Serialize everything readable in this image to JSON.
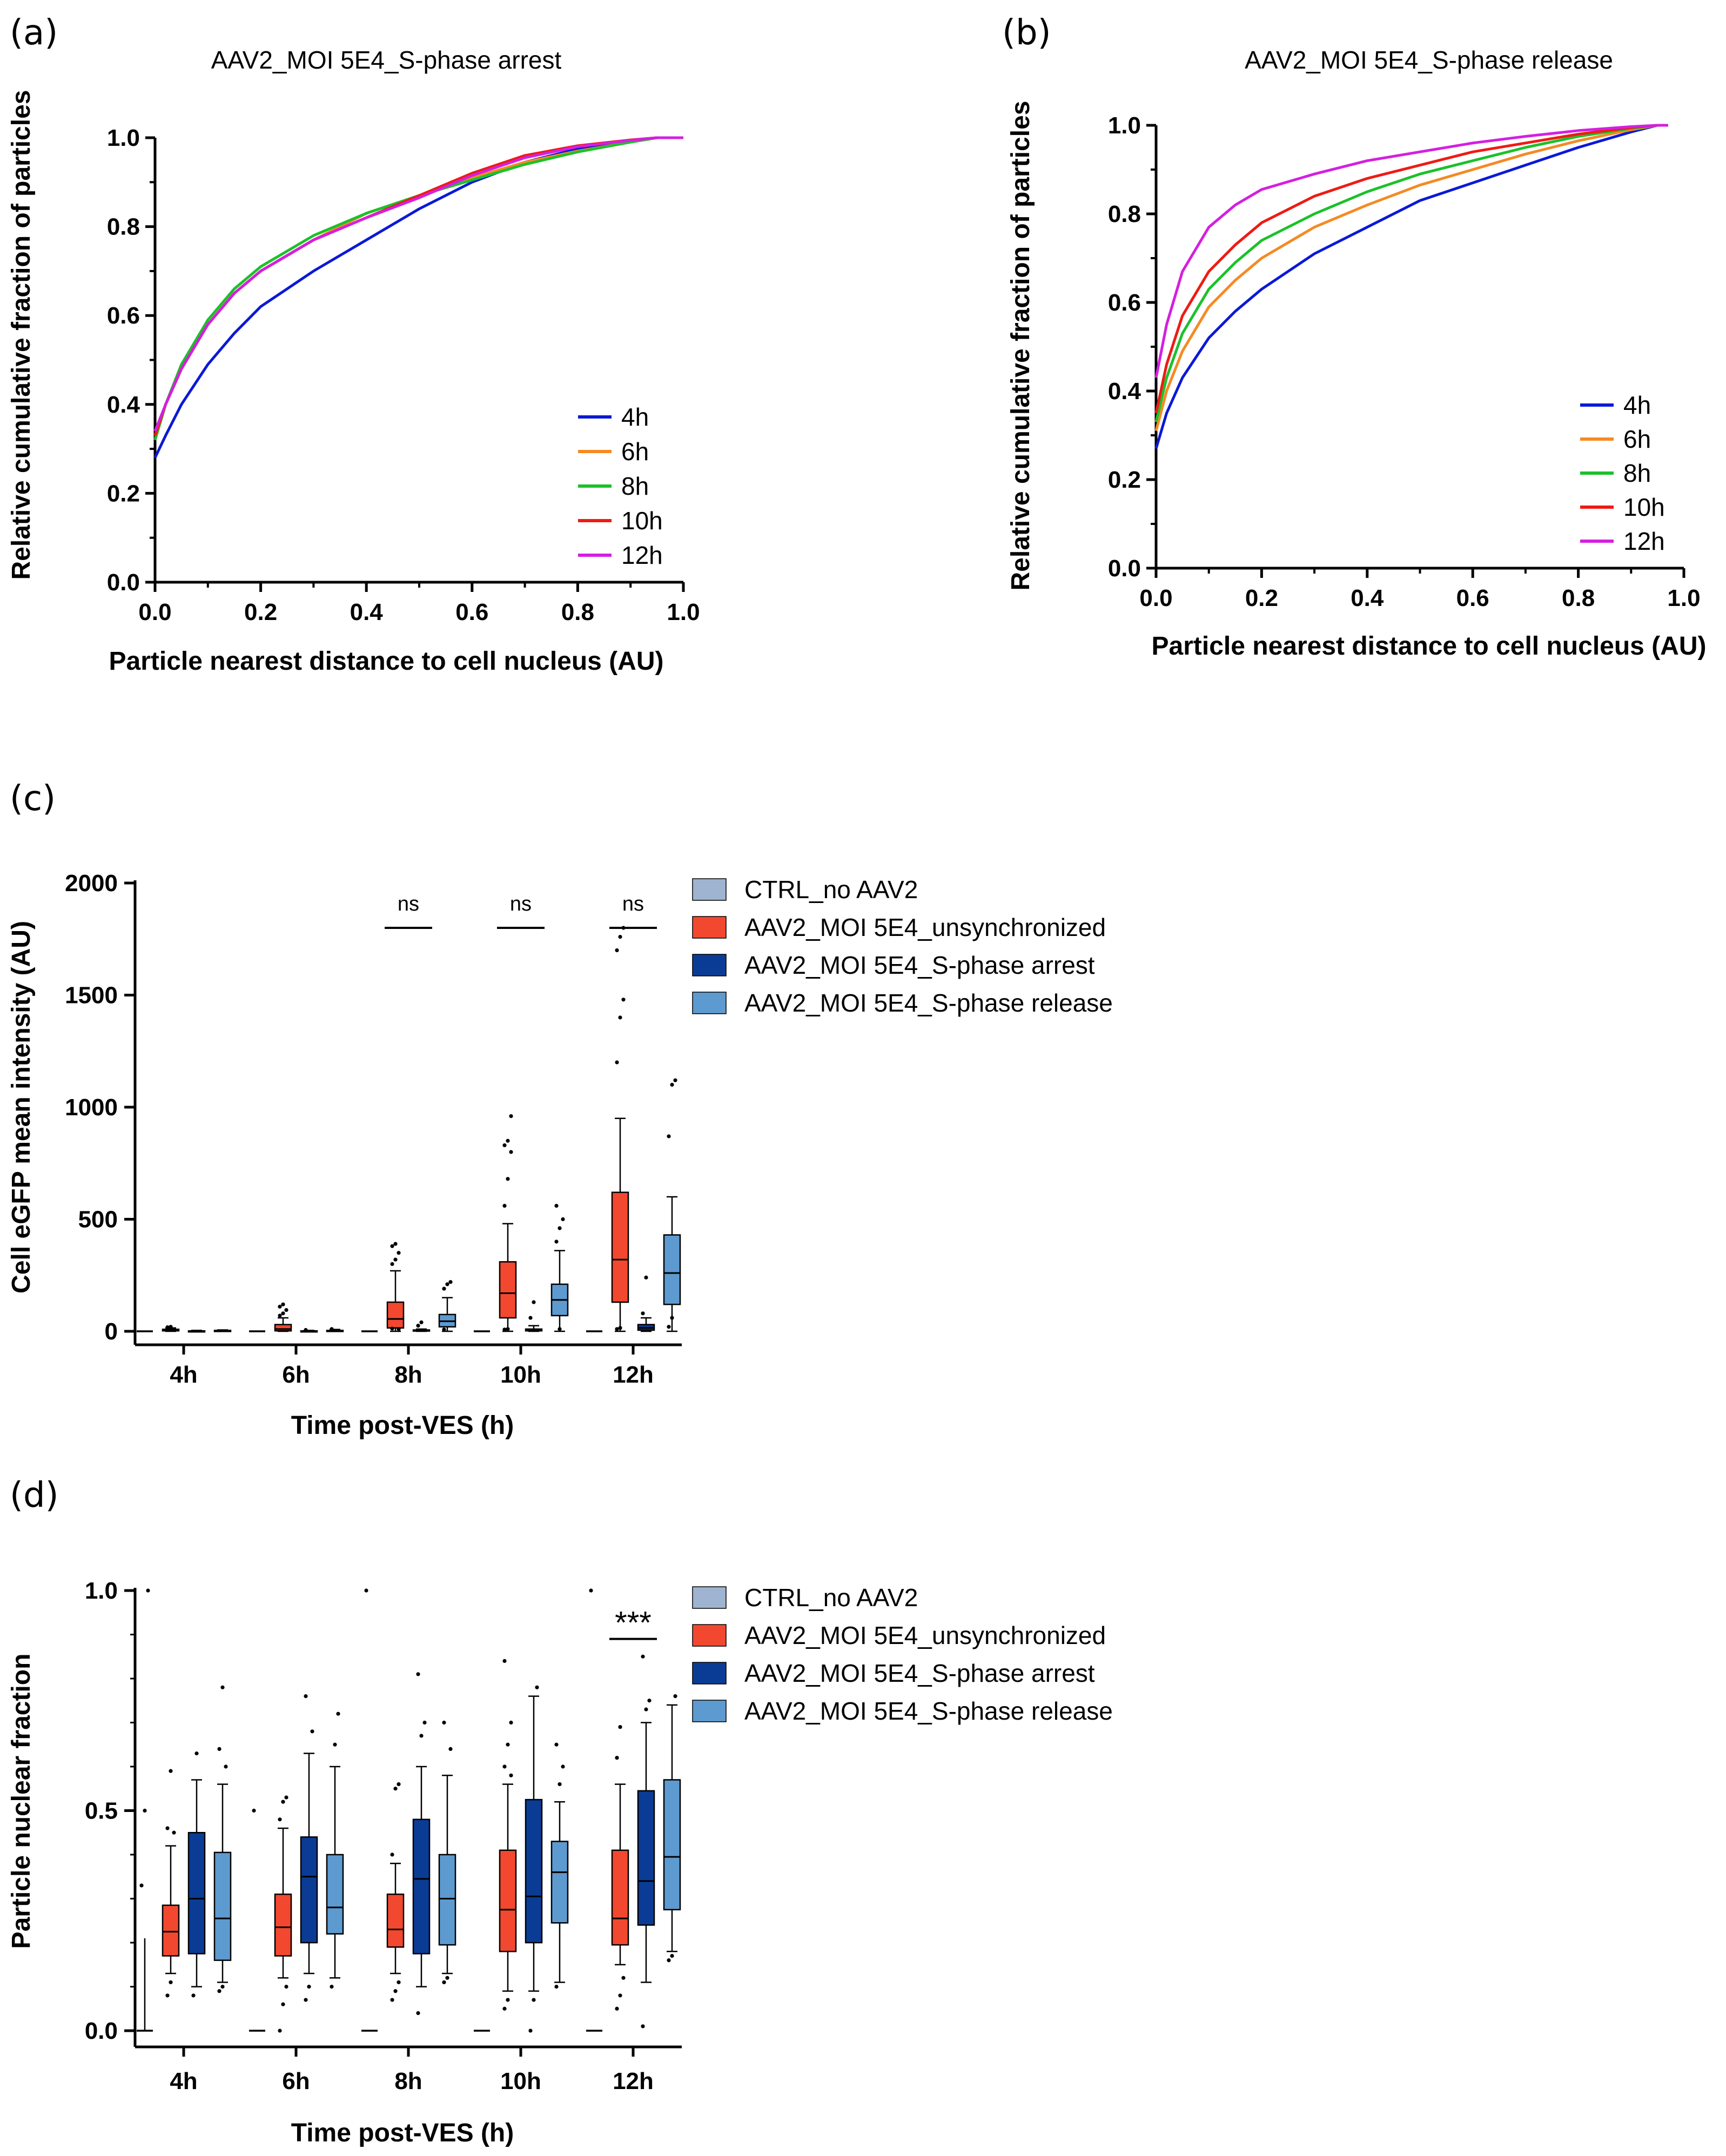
{
  "panels": {
    "a": {
      "letter": "(a)"
    },
    "b": {
      "letter": "(b)"
    },
    "c": {
      "letter": "(c)"
    },
    "d": {
      "letter": "(d)"
    }
  },
  "colors": {
    "h4": "#0b19d6",
    "h6": "#f58a23",
    "h8": "#1bc12a",
    "h10": "#ee1b14",
    "h12": "#d41fe0",
    "ctrl": "#9fb4d0",
    "unsync": "#f2482f",
    "arrest": "#0a3c95",
    "release": "#5d9ad0"
  },
  "chart_data": [
    {
      "id": "a",
      "type": "line",
      "title": "AAV2_MOI 5E4_S-phase arrest",
      "xlabel": "Particle nearest distance to cell nucleus (AU)",
      "ylabel": "Relative cumulative fraction of particles",
      "xlim": [
        0,
        1
      ],
      "ylim": [
        0,
        1
      ],
      "xticks": [
        "0.0",
        "0.2",
        "0.4",
        "0.6",
        "0.8",
        "1.0"
      ],
      "yticks": [
        "0.0",
        "0.2",
        "0.4",
        "0.6",
        "0.8",
        "1.0"
      ],
      "legend": [
        "4h",
        "6h",
        "8h",
        "10h",
        "12h"
      ],
      "legend_position": "bottom-right",
      "x": [
        0,
        0.02,
        0.05,
        0.1,
        0.15,
        0.2,
        0.3,
        0.4,
        0.5,
        0.6,
        0.7,
        0.8,
        0.9,
        0.95,
        0.98
      ],
      "series": [
        {
          "name": "4h",
          "color_key": "h4",
          "values": [
            0.28,
            0.33,
            0.4,
            0.49,
            0.56,
            0.62,
            0.7,
            0.77,
            0.84,
            0.9,
            0.945,
            0.975,
            0.993,
            1.0,
            1.0
          ]
        },
        {
          "name": "6h",
          "color_key": "h6",
          "values": [
            0.32,
            0.4,
            0.48,
            0.58,
            0.65,
            0.7,
            0.77,
            0.83,
            0.87,
            0.91,
            0.945,
            0.97,
            0.99,
            1.0,
            1.0
          ]
        },
        {
          "name": "8h",
          "color_key": "h8",
          "values": [
            0.32,
            0.4,
            0.49,
            0.59,
            0.66,
            0.71,
            0.78,
            0.83,
            0.87,
            0.905,
            0.94,
            0.968,
            0.99,
            1.0,
            1.0
          ]
        },
        {
          "name": "10h",
          "color_key": "h10",
          "values": [
            0.33,
            0.4,
            0.48,
            0.58,
            0.65,
            0.7,
            0.77,
            0.82,
            0.87,
            0.92,
            0.96,
            0.982,
            0.995,
            1.0,
            1.0
          ]
        },
        {
          "name": "12h",
          "color_key": "h12",
          "values": [
            0.34,
            0.4,
            0.48,
            0.58,
            0.65,
            0.7,
            0.77,
            0.82,
            0.865,
            0.915,
            0.955,
            0.98,
            0.994,
            1.0,
            1.0
          ]
        }
      ]
    },
    {
      "id": "b",
      "type": "line",
      "title": "AAV2_MOI 5E4_S-phase release",
      "xlabel": "Particle nearest distance to cell nucleus (AU)",
      "ylabel": "Relative cumulative fraction of particles",
      "xlim": [
        0,
        1
      ],
      "ylim": [
        0,
        1
      ],
      "xticks": [
        "0.0",
        "0.2",
        "0.4",
        "0.6",
        "0.8",
        "1.0"
      ],
      "yticks": [
        "0.0",
        "0.2",
        "0.4",
        "0.6",
        "0.8",
        "1.0"
      ],
      "legend": [
        "4h",
        "6h",
        "8h",
        "10h",
        "12h"
      ],
      "legend_position": "bottom-right",
      "x": [
        0,
        0.02,
        0.05,
        0.1,
        0.15,
        0.2,
        0.3,
        0.4,
        0.5,
        0.6,
        0.7,
        0.8,
        0.9,
        0.95
      ],
      "series": [
        {
          "name": "4h",
          "color_key": "h4",
          "values": [
            0.27,
            0.35,
            0.43,
            0.52,
            0.58,
            0.63,
            0.71,
            0.77,
            0.83,
            0.87,
            0.91,
            0.95,
            0.985,
            1.0
          ]
        },
        {
          "name": "6h",
          "color_key": "h6",
          "values": [
            0.31,
            0.4,
            0.49,
            0.59,
            0.65,
            0.7,
            0.77,
            0.82,
            0.865,
            0.9,
            0.935,
            0.965,
            0.99,
            1.0
          ]
        },
        {
          "name": "8h",
          "color_key": "h8",
          "values": [
            0.33,
            0.43,
            0.53,
            0.63,
            0.69,
            0.74,
            0.8,
            0.85,
            0.89,
            0.92,
            0.95,
            0.975,
            0.993,
            1.0
          ]
        },
        {
          "name": "10h",
          "color_key": "h10",
          "values": [
            0.35,
            0.46,
            0.57,
            0.67,
            0.73,
            0.78,
            0.84,
            0.88,
            0.91,
            0.94,
            0.96,
            0.98,
            0.995,
            1.0
          ]
        },
        {
          "name": "12h",
          "color_key": "h12",
          "values": [
            0.43,
            0.55,
            0.67,
            0.77,
            0.82,
            0.855,
            0.89,
            0.92,
            0.94,
            0.96,
            0.975,
            0.988,
            0.997,
            1.0
          ]
        }
      ]
    },
    {
      "id": "c",
      "type": "box",
      "xlabel": "Time post-VES (h)",
      "ylabel": "Cell eGFP mean intensity (AU)",
      "ylim": [
        0,
        2000
      ],
      "yticks": [
        0,
        500,
        1000,
        1500,
        2000
      ],
      "categories": [
        "4h",
        "6h",
        "8h",
        "10h",
        "12h"
      ],
      "legend": [
        "CTRL_no AAV2",
        "AAV2_MOI 5E4_unsynchronized",
        "AAV2_MOI 5E4_S-phase arrest",
        "AAV2_MOI 5E4_S-phase release"
      ],
      "legend_position": "top-right outside",
      "annotations": [
        {
          "category": "8h",
          "text": "ns",
          "y": 1800
        },
        {
          "category": "10h",
          "text": "ns",
          "y": 1800
        },
        {
          "category": "12h",
          "text": "ns",
          "y": 1800
        }
      ],
      "series": [
        {
          "name": "CTRL_no AAV2",
          "color_key": "ctrl",
          "boxes": [
            {
              "q1": 0,
              "med": 0,
              "q3": 0,
              "lo": 0,
              "hi": 0,
              "outliers": []
            },
            {
              "q1": 0,
              "med": 0,
              "q3": 0,
              "lo": 0,
              "hi": 0,
              "outliers": []
            },
            {
              "q1": 0,
              "med": 0,
              "q3": 0,
              "lo": 0,
              "hi": 0,
              "outliers": []
            },
            {
              "q1": 0,
              "med": 0,
              "q3": 0,
              "lo": 0,
              "hi": 0,
              "outliers": []
            },
            {
              "q1": 0,
              "med": 0,
              "q3": 0,
              "lo": 0,
              "hi": 0,
              "outliers": []
            }
          ]
        },
        {
          "name": "AAV2_MOI 5E4_unsynchronized",
          "color_key": "unsync",
          "boxes": [
            {
              "q1": 2,
              "med": 5,
              "q3": 9,
              "lo": 0,
              "hi": 15,
              "outliers": [
                18,
                20
              ]
            },
            {
              "q1": 2,
              "med": 10,
              "q3": 30,
              "lo": 0,
              "hi": 60,
              "outliers": [
                70,
                80,
                95,
                110,
                120
              ]
            },
            {
              "q1": 15,
              "med": 55,
              "q3": 130,
              "lo": 0,
              "hi": 270,
              "outliers": [
                300,
                320,
                350,
                380,
                390,
                10,
                12
              ]
            },
            {
              "q1": 60,
              "med": 170,
              "q3": 310,
              "lo": 0,
              "hi": 480,
              "outliers": [
                560,
                680,
                800,
                830,
                850,
                960,
                8,
                10
              ]
            },
            {
              "q1": 130,
              "med": 320,
              "q3": 620,
              "lo": 0,
              "hi": 950,
              "outliers": [
                1200,
                1400,
                1480,
                1700,
                1760,
                1800,
                10,
                15
              ]
            }
          ]
        },
        {
          "name": "AAV2_MOI 5E4_S-phase arrest",
          "color_key": "arrest",
          "boxes": [
            {
              "q1": 0,
              "med": 1,
              "q3": 2,
              "lo": 0,
              "hi": 4,
              "outliers": []
            },
            {
              "q1": 0,
              "med": 1,
              "q3": 2,
              "lo": 0,
              "hi": 4,
              "outliers": [
                6
              ]
            },
            {
              "q1": 1,
              "med": 3,
              "q3": 6,
              "lo": 0,
              "hi": 10,
              "outliers": [
                25,
                40
              ]
            },
            {
              "q1": 2,
              "med": 5,
              "q3": 10,
              "lo": 0,
              "hi": 25,
              "outliers": [
                60,
                130
              ]
            },
            {
              "q1": 5,
              "med": 15,
              "q3": 30,
              "lo": 0,
              "hi": 60,
              "outliers": [
                80,
                240
              ]
            }
          ]
        },
        {
          "name": "AAV2_MOI 5E4_S-phase release",
          "color_key": "release",
          "boxes": [
            {
              "q1": 0,
              "med": 2,
              "q3": 4,
              "lo": 0,
              "hi": 6,
              "outliers": []
            },
            {
              "q1": 0,
              "med": 2,
              "q3": 4,
              "lo": 0,
              "hi": 8,
              "outliers": [
                10
              ]
            },
            {
              "q1": 20,
              "med": 45,
              "q3": 75,
              "lo": 0,
              "hi": 150,
              "outliers": [
                190,
                210,
                220,
                8
              ]
            },
            {
              "q1": 70,
              "med": 140,
              "q3": 210,
              "lo": 0,
              "hi": 360,
              "outliers": [
                400,
                460,
                500,
                560,
                10
              ]
            },
            {
              "q1": 120,
              "med": 260,
              "q3": 430,
              "lo": 0,
              "hi": 600,
              "outliers": [
                870,
                1100,
                1120,
                20,
                60
              ]
            }
          ]
        }
      ]
    },
    {
      "id": "d",
      "type": "box",
      "xlabel": "Time post-VES (h)",
      "ylabel": "Particle nuclear fraction",
      "ylim": [
        0,
        1
      ],
      "yticks": [
        0.0,
        0.5,
        1.0
      ],
      "ytick_labels": [
        "0.0",
        "0.5",
        "1.0"
      ],
      "categories": [
        "4h",
        "6h",
        "8h",
        "10h",
        "12h"
      ],
      "legend": [
        "CTRL_no AAV2",
        "AAV2_MOI 5E4_unsynchronized",
        "AAV2_MOI 5E4_S-phase arrest",
        "AAV2_MOI 5E4_S-phase release"
      ],
      "legend_position": "top-right outside",
      "annotations": [
        {
          "category": "12h",
          "text": "***",
          "y": 0.89
        }
      ],
      "series": [
        {
          "name": "CTRL_no AAV2",
          "color_key": "ctrl",
          "boxes": [
            {
              "q1": 0,
              "med": 0,
              "q3": 0,
              "lo": 0,
              "hi": 0.21,
              "outliers": [
                0.33,
                0.5,
                1.0
              ]
            },
            {
              "q1": 0,
              "med": 0,
              "q3": 0,
              "lo": 0,
              "hi": 0,
              "outliers": [
                0.5
              ]
            },
            {
              "q1": 0,
              "med": 0,
              "q3": 0,
              "lo": 0,
              "hi": 0,
              "outliers": [
                1.0
              ]
            },
            {
              "q1": 0,
              "med": 0,
              "q3": 0,
              "lo": 0,
              "hi": 0,
              "outliers": []
            },
            {
              "q1": 0,
              "med": 0,
              "q3": 0,
              "lo": 0,
              "hi": 0,
              "outliers": [
                1.0
              ]
            }
          ]
        },
        {
          "name": "AAV2_MOI 5E4_unsynchronized",
          "color_key": "unsync",
          "boxes": [
            {
              "q1": 0.17,
              "med": 0.225,
              "q3": 0.285,
              "lo": 0.13,
              "hi": 0.42,
              "outliers": [
                0.08,
                0.11,
                0.45,
                0.46,
                0.59
              ]
            },
            {
              "q1": 0.17,
              "med": 0.235,
              "q3": 0.31,
              "lo": 0.12,
              "hi": 0.46,
              "outliers": [
                0.0,
                0.06,
                0.1,
                0.48,
                0.52,
                0.53
              ]
            },
            {
              "q1": 0.19,
              "med": 0.23,
              "q3": 0.31,
              "lo": 0.13,
              "hi": 0.38,
              "outliers": [
                0.07,
                0.09,
                0.11,
                0.4,
                0.55,
                0.56
              ]
            },
            {
              "q1": 0.18,
              "med": 0.275,
              "q3": 0.41,
              "lo": 0.09,
              "hi": 0.56,
              "outliers": [
                0.05,
                0.07,
                0.58,
                0.6,
                0.65,
                0.7,
                0.84
              ]
            },
            {
              "q1": 0.195,
              "med": 0.255,
              "q3": 0.41,
              "lo": 0.15,
              "hi": 0.56,
              "outliers": [
                0.05,
                0.08,
                0.12,
                0.62,
                0.69
              ]
            }
          ]
        },
        {
          "name": "AAV2_MOI 5E4_S-phase arrest",
          "color_key": "arrest",
          "boxes": [
            {
              "q1": 0.175,
              "med": 0.3,
              "q3": 0.45,
              "lo": 0.1,
              "hi": 0.57,
              "outliers": [
                0.08,
                0.63
              ]
            },
            {
              "q1": 0.2,
              "med": 0.35,
              "q3": 0.44,
              "lo": 0.13,
              "hi": 0.63,
              "outliers": [
                0.07,
                0.1,
                0.68,
                0.76
              ]
            },
            {
              "q1": 0.175,
              "med": 0.345,
              "q3": 0.48,
              "lo": 0.1,
              "hi": 0.6,
              "outliers": [
                0.04,
                0.67,
                0.7,
                0.81
              ]
            },
            {
              "q1": 0.2,
              "med": 0.305,
              "q3": 0.525,
              "lo": 0.09,
              "hi": 0.76,
              "outliers": [
                0.0,
                0.07,
                0.78
              ]
            },
            {
              "q1": 0.24,
              "med": 0.34,
              "q3": 0.545,
              "lo": 0.11,
              "hi": 0.7,
              "outliers": [
                0.01,
                0.73,
                0.75,
                0.85
              ]
            }
          ]
        },
        {
          "name": "AAV2_MOI 5E4_S-phase release",
          "color_key": "release",
          "boxes": [
            {
              "q1": 0.16,
              "med": 0.255,
              "q3": 0.405,
              "lo": 0.11,
              "hi": 0.56,
              "outliers": [
                0.09,
                0.1,
                0.6,
                0.64,
                0.78
              ]
            },
            {
              "q1": 0.22,
              "med": 0.28,
              "q3": 0.4,
              "lo": 0.12,
              "hi": 0.6,
              "outliers": [
                0.1,
                0.65,
                0.72
              ]
            },
            {
              "q1": 0.195,
              "med": 0.3,
              "q3": 0.4,
              "lo": 0.13,
              "hi": 0.58,
              "outliers": [
                0.11,
                0.12,
                0.64,
                0.7
              ]
            },
            {
              "q1": 0.245,
              "med": 0.36,
              "q3": 0.43,
              "lo": 0.11,
              "hi": 0.52,
              "outliers": [
                0.1,
                0.56,
                0.6,
                0.65
              ]
            },
            {
              "q1": 0.275,
              "med": 0.395,
              "q3": 0.57,
              "lo": 0.18,
              "hi": 0.74,
              "outliers": [
                0.16,
                0.17,
                0.76
              ]
            }
          ]
        }
      ]
    }
  ]
}
